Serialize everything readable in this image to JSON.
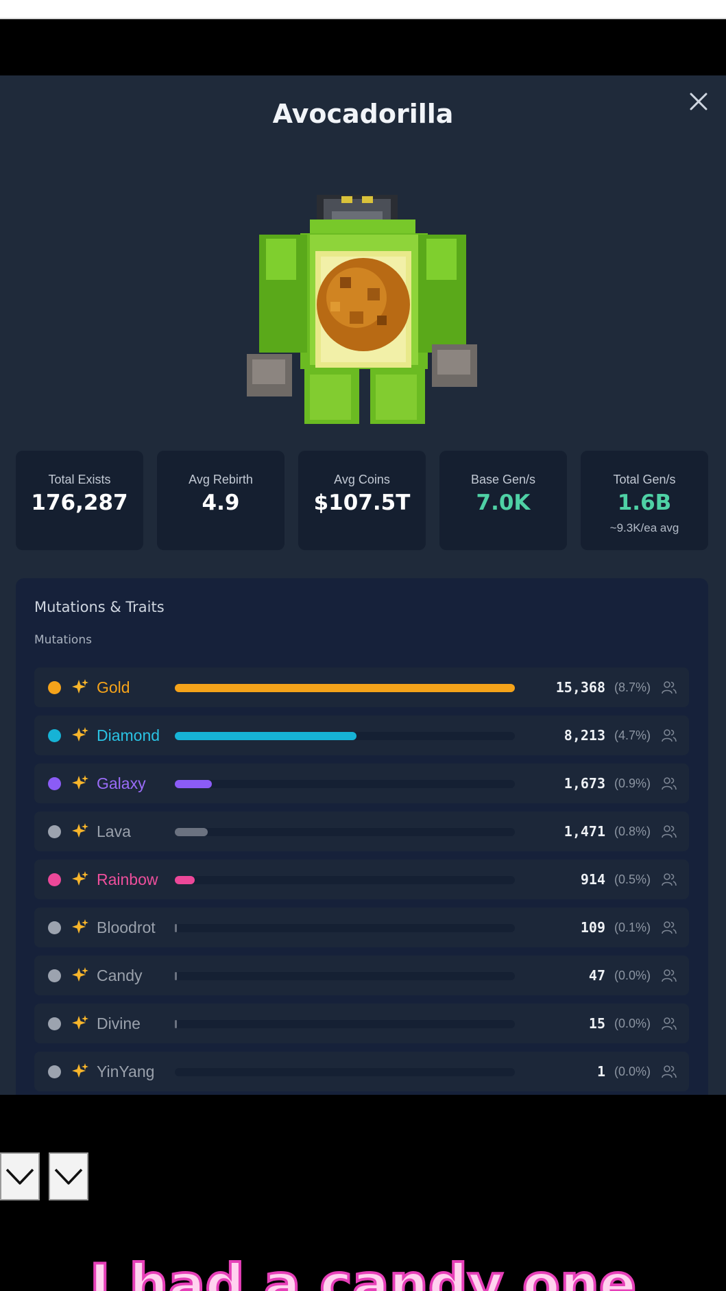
{
  "modal": {
    "title": "Avocadorilla",
    "close_icon": "close-icon",
    "character_image": "avocadorilla-character"
  },
  "stats": [
    {
      "label": "Total Exists",
      "value": "176,287",
      "sub": ""
    },
    {
      "label": "Avg Rebirth",
      "value": "4.9",
      "sub": ""
    },
    {
      "label": "Avg Coins",
      "value": "$107.5T",
      "sub": ""
    },
    {
      "label": "Base Gen/s",
      "value": "7.0K",
      "sub": "",
      "value_color": "#4fd1a5"
    },
    {
      "label": "Total Gen/s",
      "value": "1.6B",
      "sub": "~9.3K/ea avg",
      "value_color": "#4fd1a5"
    }
  ],
  "traits": {
    "title": "Mutations & Traits",
    "section_label": "Mutations",
    "icons": {
      "mutation": "sparkle-icon",
      "owners": "people-icon"
    },
    "mutations": [
      {
        "name": "Gold",
        "count": "15,368",
        "percent": "(8.7%)",
        "fill_fraction": 1.0,
        "color": "#f5a31a",
        "name_color": "#f5a31a"
      },
      {
        "name": "Diamond",
        "count": "8,213",
        "percent": "(4.7%)",
        "fill_fraction": 0.534,
        "color": "#16b3d6",
        "name_color": "#2ac3e4"
      },
      {
        "name": "Galaxy",
        "count": "1,673",
        "percent": "(0.9%)",
        "fill_fraction": 0.109,
        "color": "#8b5cf6",
        "name_color": "#9a6cf8"
      },
      {
        "name": "Lava",
        "count": "1,471",
        "percent": "(0.8%)",
        "fill_fraction": 0.096,
        "color": "#6b7280",
        "name_color": "#9aa1ac"
      },
      {
        "name": "Rainbow",
        "count": "914",
        "percent": "(0.5%)",
        "fill_fraction": 0.059,
        "color": "#ec4899",
        "name_color": "#ee4f9c"
      },
      {
        "name": "Bloodrot",
        "count": "109",
        "percent": "(0.1%)",
        "fill_fraction": 0.007,
        "color": "#6b7280",
        "name_color": "#9aa1ac"
      },
      {
        "name": "Candy",
        "count": "47",
        "percent": "(0.0%)",
        "fill_fraction": 0.003,
        "color": "#6b7280",
        "name_color": "#9aa1ac"
      },
      {
        "name": "Divine",
        "count": "15",
        "percent": "(0.0%)",
        "fill_fraction": 0.001,
        "color": "#6b7280",
        "name_color": "#9aa1ac"
      },
      {
        "name": "YinYang",
        "count": "1",
        "percent": "(0.0%)",
        "fill_fraction": 0.0,
        "color": "#6b7280",
        "name_color": "#9aa1ac"
      }
    ]
  },
  "overlay": {
    "dropdown_icon": "chevron-down-icon",
    "caption": "I had a candy one"
  }
}
